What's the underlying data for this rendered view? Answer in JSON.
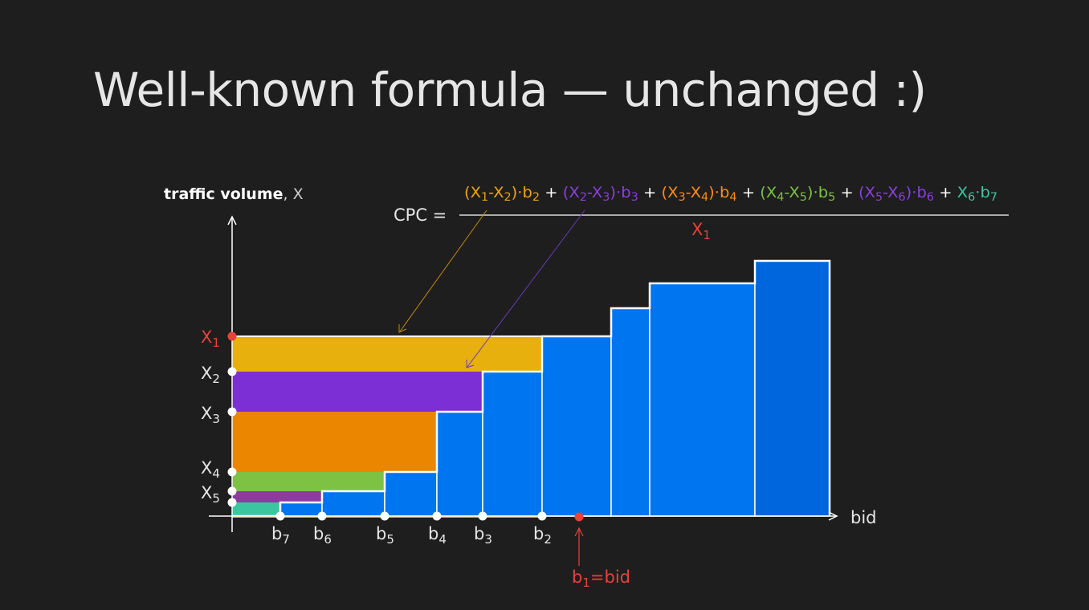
{
  "title": "Well-known formula — unchanged :)",
  "y_axis_label": {
    "bold": "traffic volume",
    "rest": ", X"
  },
  "x_axis_label": "bid",
  "formula": {
    "lhs": "CPC  =",
    "numerator_terms": [
      {
        "color": "#f0a30a",
        "parts": [
          [
            "(X",
            ""
          ],
          [
            "1",
            "sub"
          ],
          [
            "-X",
            ""
          ],
          [
            "2",
            "sub"
          ],
          [
            ")·b",
            ""
          ],
          [
            "2",
            "sub"
          ]
        ]
      },
      {
        "color": "#ffffff",
        "parts": [
          [
            " + ",
            ""
          ]
        ]
      },
      {
        "color": "#8a3fe0",
        "parts": [
          [
            "(X",
            ""
          ],
          [
            "2",
            "sub"
          ],
          [
            "-X",
            ""
          ],
          [
            "3",
            "sub"
          ],
          [
            ")·b",
            ""
          ],
          [
            "3",
            "sub"
          ]
        ]
      },
      {
        "color": "#ffffff",
        "parts": [
          [
            " + ",
            ""
          ]
        ]
      },
      {
        "color": "#ff8c0a",
        "parts": [
          [
            "(X",
            ""
          ],
          [
            "3",
            "sub"
          ],
          [
            "-X",
            ""
          ],
          [
            "4",
            "sub"
          ],
          [
            ")·b",
            ""
          ],
          [
            "4",
            "sub"
          ]
        ]
      },
      {
        "color": "#ffffff",
        "parts": [
          [
            " + ",
            ""
          ]
        ]
      },
      {
        "color": "#7dc242",
        "parts": [
          [
            "(X",
            ""
          ],
          [
            "4",
            "sub"
          ],
          [
            "-X",
            ""
          ],
          [
            "5",
            "sub"
          ],
          [
            ")·b",
            ""
          ],
          [
            "5",
            "sub"
          ]
        ]
      },
      {
        "color": "#ffffff",
        "parts": [
          [
            " + ",
            ""
          ]
        ]
      },
      {
        "color": "#8a3fe0",
        "parts": [
          [
            "(X",
            ""
          ],
          [
            "5",
            "sub"
          ],
          [
            "-X",
            ""
          ],
          [
            "6",
            "sub"
          ],
          [
            ")·b",
            ""
          ],
          [
            "6",
            "sub"
          ]
        ]
      },
      {
        "color": "#ffffff",
        "parts": [
          [
            " + ",
            ""
          ]
        ]
      },
      {
        "color": "#3ac7a0",
        "parts": [
          [
            "X",
            ""
          ],
          [
            "6",
            "sub"
          ],
          [
            "·b",
            ""
          ],
          [
            "7",
            "sub"
          ]
        ]
      }
    ],
    "denominator": {
      "color": "#e8423a",
      "parts": [
        [
          "X",
          ""
        ],
        [
          "1",
          "sub"
        ]
      ]
    }
  },
  "y_levels": [
    {
      "name": "X",
      "sub": "1",
      "color": "#e8423a"
    },
    {
      "name": "X",
      "sub": "2",
      "color": "#e6e6e6"
    },
    {
      "name": "X",
      "sub": "3",
      "color": "#e6e6e6"
    },
    {
      "name": "X",
      "sub": "4",
      "color": "#e6e6e6"
    },
    {
      "name": "X",
      "sub": "5",
      "color": "#e6e6e6"
    }
  ],
  "x_bids": [
    {
      "name": "b",
      "sub": "7"
    },
    {
      "name": "b",
      "sub": "6"
    },
    {
      "name": "b",
      "sub": "5"
    },
    {
      "name": "b",
      "sub": "4"
    },
    {
      "name": "b",
      "sub": "3"
    },
    {
      "name": "b",
      "sub": "2"
    }
  ],
  "bid_marker": {
    "parts": [
      [
        "b",
        ""
      ],
      [
        "1",
        "sub"
      ],
      [
        "=bid",
        ""
      ]
    ],
    "color": "#e8423a"
  },
  "bands": [
    {
      "name": "x1-x2-band",
      "color": "#e8b00c"
    },
    {
      "name": "x2-x3-band",
      "color": "#7b2fd4"
    },
    {
      "name": "x3-x4-band",
      "color": "#eb8600"
    },
    {
      "name": "x4-x5-band",
      "color": "#7dc242"
    },
    {
      "name": "x5-x6-band",
      "color": "#8d3b9f"
    },
    {
      "name": "x6-band",
      "color": "#3ac7a0"
    }
  ],
  "colors": {
    "background": "#1e1e1e",
    "bars": "#0075f0",
    "last_bar": "#0066dd",
    "axis": "#ffffff",
    "text": "#e6e6e6",
    "highlight": "#e8423a"
  }
}
